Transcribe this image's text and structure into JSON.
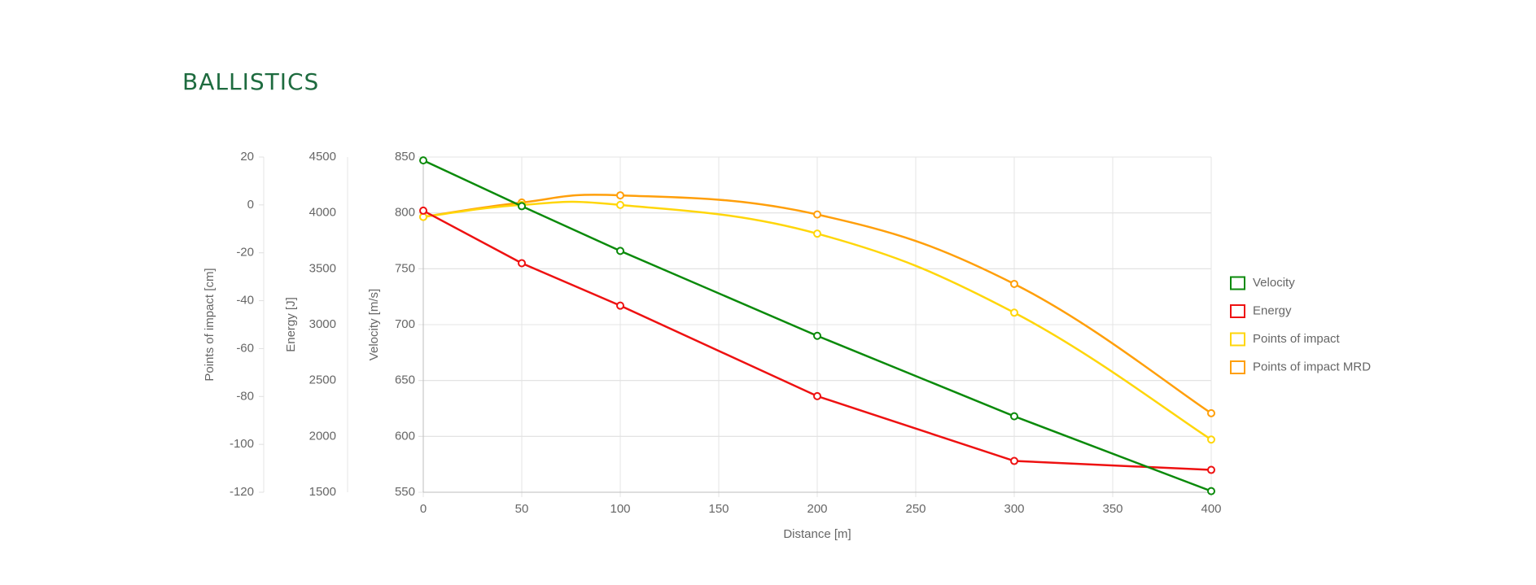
{
  "page": {
    "title": "BALLISTICS"
  },
  "chart_data": {
    "type": "line",
    "x": [
      0,
      50,
      100,
      200,
      300,
      400
    ],
    "xlabel": "Distance [m]",
    "xlim": [
      0,
      400
    ],
    "xticks": [
      "0",
      "50",
      "100",
      "150",
      "200",
      "250",
      "300",
      "350",
      "400"
    ],
    "grid": true,
    "legend_position": "right",
    "axes": [
      {
        "id": "velocity",
        "label": "Velocity [m/s]",
        "range": [
          550,
          850
        ],
        "ticks": [
          "550",
          "600",
          "650",
          "700",
          "750",
          "800",
          "850"
        ]
      },
      {
        "id": "energy",
        "label": "Energy [J]",
        "range": [
          1500,
          4500
        ],
        "ticks": [
          "1500",
          "2000",
          "2500",
          "3000",
          "3500",
          "4000",
          "4500"
        ]
      },
      {
        "id": "poi",
        "label": "Points of impact [cm]",
        "range": [
          -120,
          20
        ],
        "ticks": [
          "-120",
          "-100",
          "-80",
          "-60",
          "-40",
          "-20",
          "0",
          "20"
        ]
      }
    ],
    "series": [
      {
        "name": "Velocity",
        "axis": "velocity",
        "color": "#0a8a0a",
        "smooth": false,
        "values": [
          847,
          806,
          766,
          690,
          618,
          551
        ]
      },
      {
        "name": "Energy",
        "axis": "energy",
        "color": "#ee1111",
        "smooth": false,
        "values": [
          4020,
          3550,
          3170,
          2360,
          1780,
          1700
        ]
      },
      {
        "name": "Points of impact",
        "axis": "poi",
        "color": "#ffd60a",
        "smooth": true,
        "values": [
          -5,
          0,
          0,
          -12,
          -45,
          -98
        ]
      },
      {
        "name": "Points of impact MRD",
        "axis": "poi",
        "color": "#ff9f0a",
        "smooth": true,
        "values": [
          -5,
          1,
          4,
          -4,
          -33,
          -87
        ]
      }
    ]
  }
}
